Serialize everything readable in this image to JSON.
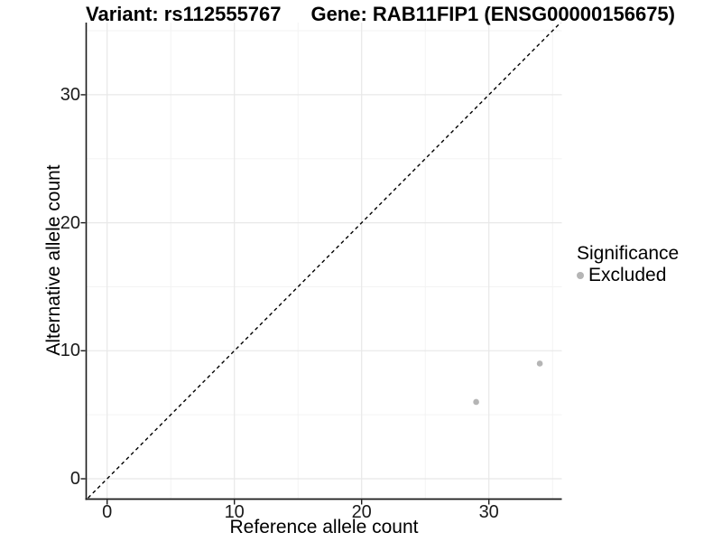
{
  "chart_data": {
    "type": "scatter",
    "title_left": "Variant: rs112555767",
    "title_right": "Gene: RAB11FIP1 (ENSG00000156675)",
    "xlabel": "Reference allele count",
    "ylabel": "Alternative allele count",
    "x_ticks": [
      0,
      10,
      20,
      30
    ],
    "y_ticks": [
      0,
      10,
      20,
      30
    ],
    "x_minor_ticks": [
      5,
      15,
      25,
      35
    ],
    "y_minor_ticks": [
      5,
      15,
      25,
      35
    ],
    "xlim": [
      -1.7,
      35.7
    ],
    "ylim": [
      -1.7,
      35.7
    ],
    "grid": true,
    "identity_line": {
      "style": "dashed",
      "slope": 1,
      "intercept": 0,
      "color": "#000000"
    },
    "series": [
      {
        "name": "Excluded",
        "color": "#b5b5b5",
        "points": [
          {
            "x": 29,
            "y": 6
          },
          {
            "x": 34,
            "y": 9
          }
        ]
      }
    ],
    "legend": {
      "title": "Significance",
      "position": "right",
      "items": [
        {
          "label": "Excluded",
          "color": "#b5b5b5"
        }
      ]
    },
    "colors": {
      "point": "#b5b5b5",
      "axis_line": "#1a1a1a",
      "grid_major": "#e8e8e8",
      "grid_minor": "#f3f3f3",
      "background": "#ffffff"
    }
  }
}
